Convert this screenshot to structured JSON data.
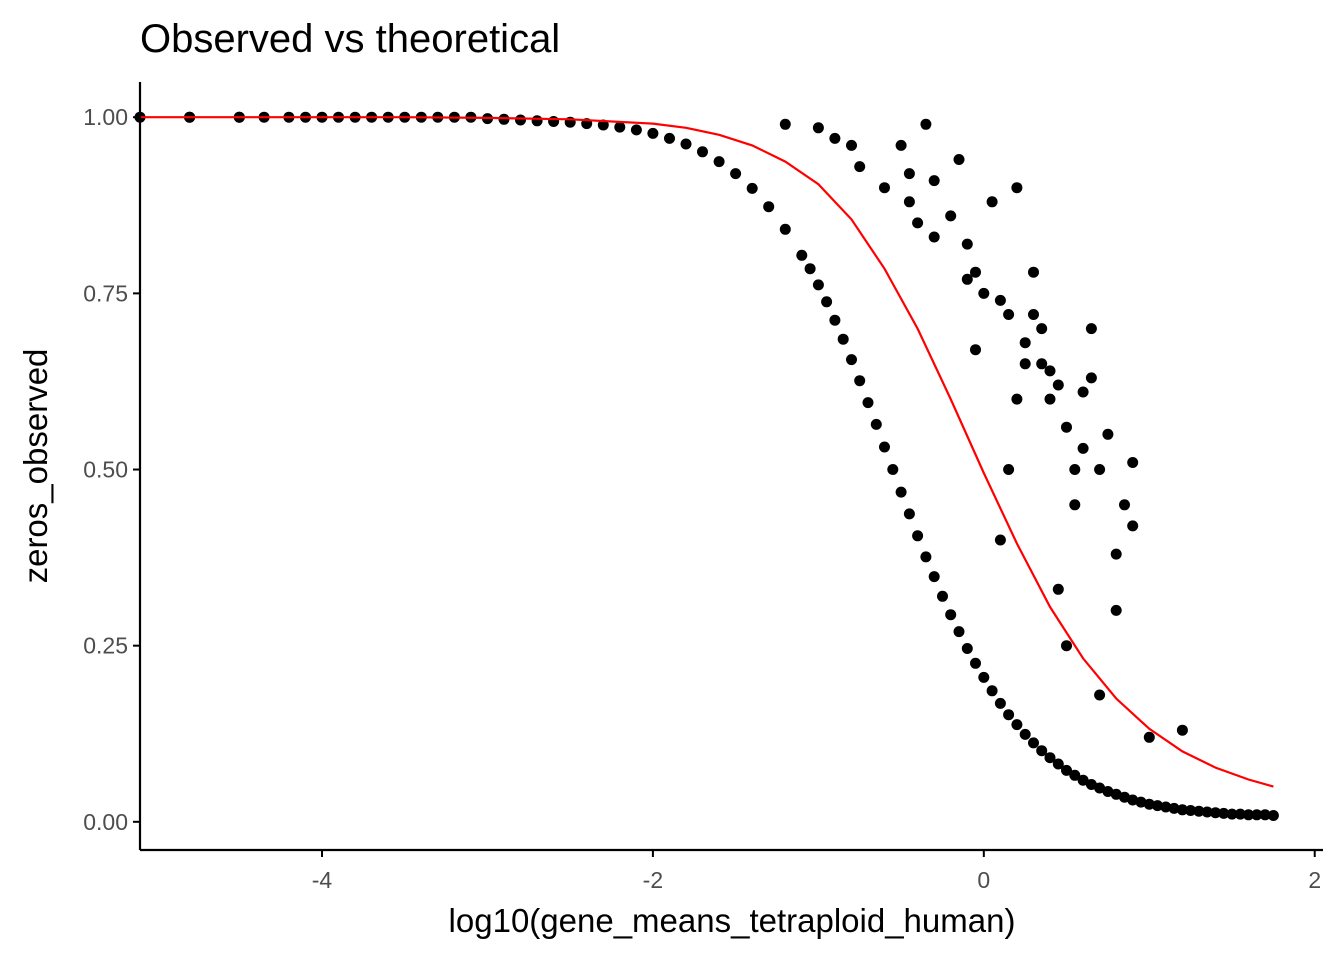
{
  "colors": {
    "points": "#000000",
    "curve": "#ff0000",
    "axis": "#000000",
    "tick_label": "#4d4d4d",
    "background": "#ffffff"
  },
  "chart_data": {
    "type": "scatter",
    "title": "Observed vs theoretical",
    "xlabel": "log10(gene_means_tetraploid_human)",
    "ylabel": "zeros_observed",
    "xlim": [
      -5.1,
      2.05
    ],
    "ylim": [
      -0.04,
      1.05
    ],
    "x_ticks": [
      -4,
      -2,
      0,
      2
    ],
    "x_tick_labels": [
      "-4",
      "-2",
      "0",
      "2"
    ],
    "y_ticks": [
      0,
      0.25,
      0.5,
      0.75,
      1
    ],
    "y_tick_labels": [
      "0.00",
      "0.25",
      "0.50",
      "0.75",
      "1.00"
    ],
    "grid": false,
    "legend": "none",
    "series": [
      {
        "kind": "points",
        "x": [
          -5.1,
          -4.8,
          -4.8,
          -4.5,
          -4.5,
          -4.35,
          -4.2,
          -4.1,
          -4.0,
          -3.9,
          -3.8,
          -3.7,
          -3.6,
          -3.5,
          -3.4,
          -3.3,
          -3.2,
          -3.1,
          -3.0,
          -2.9,
          -2.8,
          -2.7,
          -2.6,
          -2.5,
          -2.4,
          -2.3,
          -2.2,
          -2.1,
          -2.0,
          -1.9,
          -1.8,
          -1.7,
          -1.6,
          -1.5,
          -1.4,
          -1.3,
          -1.2,
          -1.1,
          -1.05,
          -1.0,
          -0.95,
          -0.9,
          -0.85,
          -0.8,
          -0.75,
          -0.7,
          -0.65,
          -0.6,
          -0.55,
          -0.5,
          -0.45,
          -0.4,
          -0.35,
          -0.3,
          -0.25,
          -0.2,
          -0.15,
          -0.1,
          -0.05,
          0.0,
          0.05,
          0.1,
          0.15,
          0.2,
          0.25,
          0.3,
          0.35,
          0.4,
          0.45,
          0.5,
          0.55,
          0.6,
          0.65,
          0.7,
          0.75,
          0.8,
          0.85,
          0.9,
          0.95,
          1.0,
          1.05,
          1.1,
          1.15,
          1.2,
          1.25,
          1.3,
          1.35,
          1.4,
          1.45,
          1.5,
          1.55,
          1.6,
          1.65,
          1.7,
          1.75,
          -1.2,
          -1.0,
          -0.9,
          -0.8,
          -0.75,
          -0.6,
          -0.5,
          -0.45,
          -0.4,
          -0.35,
          -0.3,
          -0.2,
          -0.15,
          -0.1,
          -0.05,
          0.0,
          0.05,
          0.1,
          0.15,
          0.2,
          0.25,
          0.3,
          0.35,
          0.4,
          0.45,
          0.5,
          0.55,
          0.6,
          0.65,
          0.7,
          0.75,
          0.8,
          0.85,
          0.9,
          1.0,
          1.2,
          -0.45,
          -0.3,
          -0.1,
          0.35,
          0.4,
          0.6,
          0.65,
          0.9,
          -0.05,
          0.3,
          0.55,
          0.8,
          0.2,
          0.15,
          0.1,
          0.45,
          0.5,
          0.7,
          0.25
        ],
        "y": [
          1.0,
          1.0,
          1.0,
          1.0,
          1.0,
          1.0,
          1.0,
          1.0,
          1.0,
          1.0,
          1.0,
          1.0,
          1.0,
          1.0,
          1.0,
          1.0,
          1.0,
          1.0,
          0.998,
          0.997,
          0.996,
          0.995,
          0.994,
          0.993,
          0.991,
          0.989,
          0.986,
          0.982,
          0.977,
          0.97,
          0.962,
          0.951,
          0.937,
          0.92,
          0.899,
          0.873,
          0.841,
          0.804,
          0.785,
          0.762,
          0.738,
          0.712,
          0.685,
          0.656,
          0.626,
          0.595,
          0.564,
          0.532,
          0.5,
          0.468,
          0.437,
          0.406,
          0.376,
          0.348,
          0.32,
          0.294,
          0.27,
          0.246,
          0.225,
          0.205,
          0.186,
          0.168,
          0.152,
          0.138,
          0.124,
          0.112,
          0.101,
          0.091,
          0.082,
          0.073,
          0.066,
          0.059,
          0.053,
          0.048,
          0.043,
          0.039,
          0.035,
          0.031,
          0.028,
          0.025,
          0.023,
          0.021,
          0.019,
          0.017,
          0.016,
          0.015,
          0.014,
          0.013,
          0.012,
          0.011,
          0.011,
          0.01,
          0.01,
          0.01,
          0.009,
          0.99,
          0.985,
          0.97,
          0.96,
          0.93,
          0.9,
          0.96,
          0.88,
          0.85,
          0.99,
          0.91,
          0.86,
          0.94,
          0.82,
          0.78,
          0.75,
          0.88,
          0.74,
          0.72,
          0.9,
          0.68,
          0.72,
          0.65,
          0.6,
          0.62,
          0.56,
          0.5,
          0.53,
          0.63,
          0.5,
          0.55,
          0.38,
          0.45,
          0.42,
          0.12,
          0.13,
          0.92,
          0.83,
          0.77,
          0.7,
          0.64,
          0.61,
          0.7,
          0.51,
          0.67,
          0.78,
          0.45,
          0.3,
          0.6,
          0.5,
          0.4,
          0.33,
          0.25,
          0.18,
          0.65
        ]
      },
      {
        "kind": "line",
        "x": [
          -5.1,
          -4.5,
          -4.0,
          -3.5,
          -3.0,
          -2.5,
          -2.0,
          -1.8,
          -1.6,
          -1.4,
          -1.2,
          -1.0,
          -0.8,
          -0.6,
          -0.4,
          -0.2,
          0.0,
          0.2,
          0.4,
          0.6,
          0.8,
          1.0,
          1.2,
          1.4,
          1.6,
          1.75
        ],
        "y": [
          1.0,
          1.0,
          1.0,
          1.0,
          0.999,
          0.997,
          0.991,
          0.985,
          0.975,
          0.96,
          0.937,
          0.905,
          0.855,
          0.785,
          0.7,
          0.6,
          0.495,
          0.395,
          0.305,
          0.232,
          0.175,
          0.132,
          0.1,
          0.077,
          0.06,
          0.05
        ]
      }
    ]
  }
}
